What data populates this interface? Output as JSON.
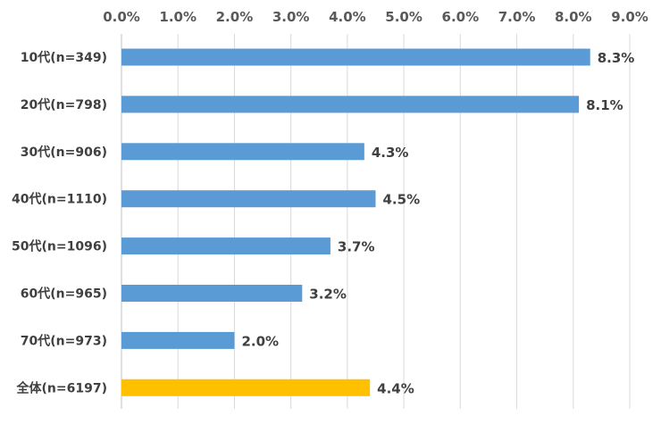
{
  "chart_data": {
    "type": "bar",
    "orientation": "horizontal",
    "categories": [
      "10代(n=349)",
      "20代(n=798)",
      "30代(n=906)",
      "40代(n=1110)",
      "50代(n=1096)",
      "60代(n=965)",
      "70代(n=973)",
      "全体(n=6197)"
    ],
    "values": [
      8.3,
      8.1,
      4.3,
      4.5,
      3.7,
      3.2,
      2.0,
      4.4
    ],
    "data_labels": [
      "8.3%",
      "8.1%",
      "4.3%",
      "4.5%",
      "3.7%",
      "3.2%",
      "2.0%",
      "4.4%"
    ],
    "xlim": [
      0,
      9
    ],
    "x_ticks": [
      0,
      1,
      2,
      3,
      4,
      5,
      6,
      7,
      8,
      9
    ],
    "x_tick_labels": [
      "0.0%",
      "1.0%",
      "2.0%",
      "3.0%",
      "4.0%",
      "5.0%",
      "6.0%",
      "7.0%",
      "8.0%",
      "9.0%"
    ],
    "x_axis_position": "top",
    "grid": true,
    "colors": {
      "default": "#5b9bd5",
      "highlight": "#ffc000",
      "highlight_category": "全体(n=6197)"
    }
  }
}
